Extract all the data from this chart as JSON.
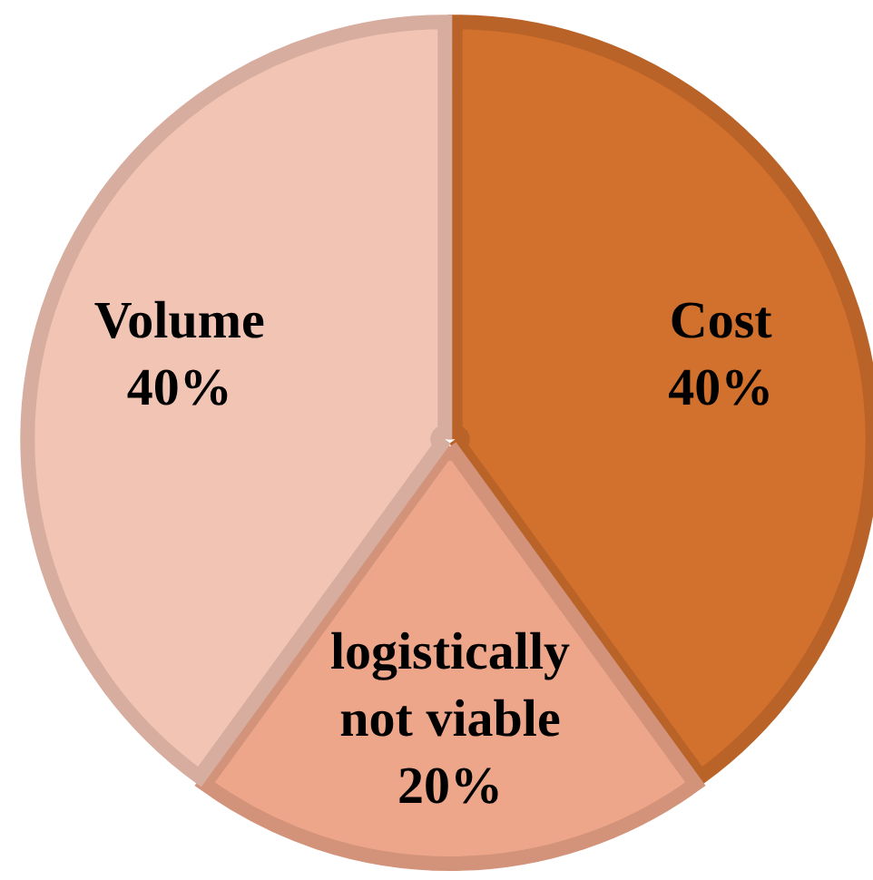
{
  "chart_data": {
    "type": "pie",
    "categories": [
      "Cost",
      "logistically not viable",
      "Volume"
    ],
    "values": [
      40,
      20,
      40
    ],
    "value_labels": [
      "40%",
      "20%",
      "40%"
    ],
    "colors": [
      "#d2702d",
      "#eea68a",
      "#f2c4b4"
    ]
  }
}
